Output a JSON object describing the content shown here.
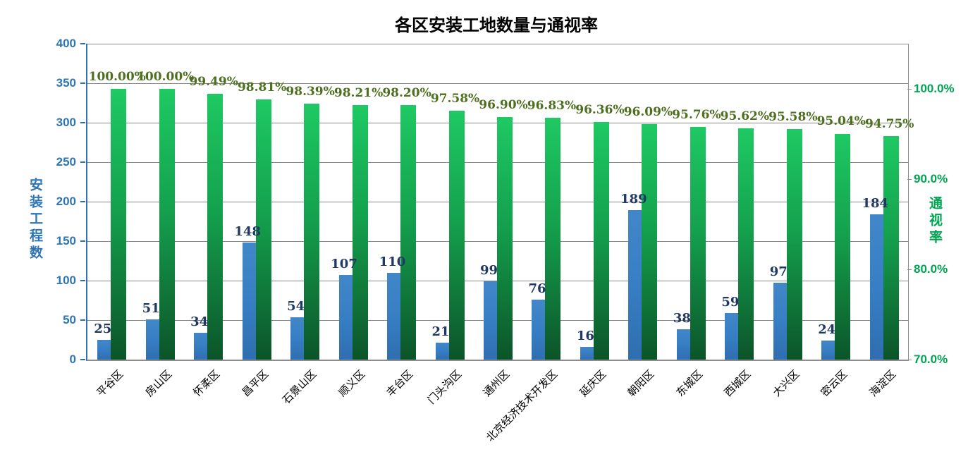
{
  "chart_data": {
    "type": "bar",
    "title": "各区安装工地数量与通视率",
    "legend": "none",
    "grid": true,
    "categories": [
      "平谷区",
      "房山区",
      "怀柔区",
      "昌平区",
      "石景山区",
      "顺义区",
      "丰台区",
      "门头沟区",
      "通州区",
      "北京经济技术开发区",
      "延庆区",
      "朝阳区",
      "东城区",
      "西城区",
      "大兴区",
      "密云区",
      "海淀区"
    ],
    "series": [
      {
        "name": "安装工程数",
        "axis": "left",
        "values": [
          25,
          51,
          34,
          148,
          54,
          107,
          110,
          21,
          99,
          76,
          16,
          189,
          38,
          59,
          97,
          24,
          184
        ],
        "labels": [
          "25",
          "51",
          "34",
          "148",
          "54",
          "107",
          "110",
          "21",
          "99",
          "76",
          "16",
          "189",
          "38",
          "59",
          "97",
          "24",
          "184"
        ]
      },
      {
        "name": "通视率",
        "axis": "right",
        "values": [
          100.0,
          100.0,
          99.49,
          98.81,
          98.39,
          98.21,
          98.2,
          97.58,
          96.9,
          96.83,
          96.36,
          96.09,
          95.76,
          95.62,
          95.58,
          95.04,
          94.75
        ],
        "labels": [
          "100.00%",
          "100.00%",
          "99.49%",
          "98.81%",
          "98.39%",
          "98.21%",
          "98.20%",
          "97.58%",
          "96.90%",
          "96.83%",
          "96.36%",
          "96.09%",
          "95.76%",
          "95.62%",
          "95.58%",
          "95.04%",
          "94.75%"
        ]
      }
    ],
    "left_axis": {
      "label": "安装工程数",
      "min": 0,
      "max": 400,
      "step": 50,
      "tick_labels": [
        "400",
        "350",
        "300",
        "250",
        "200",
        "150",
        "100",
        "50",
        "0"
      ],
      "tick_values": [
        400,
        350,
        300,
        250,
        200,
        150,
        100,
        50,
        0
      ],
      "color": "#2e75b6"
    },
    "right_axis": {
      "label": "通视率",
      "min": 70,
      "max": 105,
      "tick_labels": [
        "100.0%",
        "90.0%",
        "80.0%",
        "70.0%"
      ],
      "tick_values": [
        100,
        90,
        80,
        70
      ],
      "color": "#00a551"
    },
    "colors": {
      "count_bar": "#377ec4",
      "count_bar_light": "#4187c8",
      "count_bar_dark": "#2f6eb0",
      "rate_bar_top": "#1ec963",
      "rate_bar_mid": "#14a04d",
      "rate_bar_bottom": "#0c5429",
      "count_label": "#1f3864",
      "rate_label": "#4d6f1f",
      "gridline": "#8a8a8a",
      "title": "#000000"
    }
  }
}
